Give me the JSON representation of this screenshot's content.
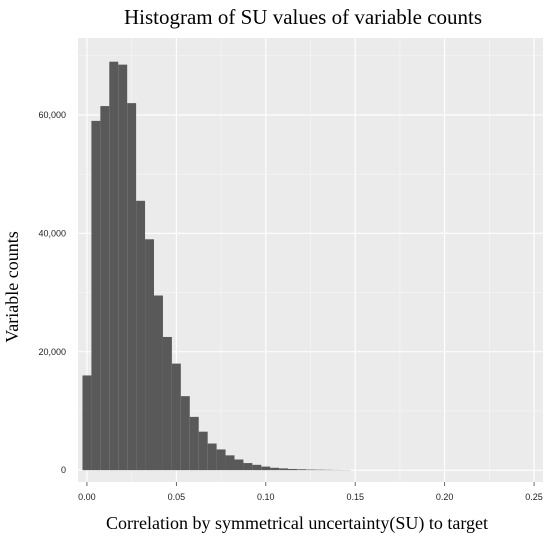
{
  "chart_data": {
    "type": "bar",
    "title": "Histogram of SU values of variable counts",
    "xlabel": "Correlation by symmetrical uncertainty(SU) to target",
    "ylabel": "Variable counts",
    "xlim": [
      -0.005,
      0.255
    ],
    "ylim": [
      -2000,
      73000
    ],
    "x_ticks": [
      0.0,
      0.05,
      0.1,
      0.15,
      0.2,
      0.25
    ],
    "x_tick_labels": [
      "0.00",
      "0.05",
      "0.10",
      "0.15",
      "0.20",
      "0.25"
    ],
    "y_ticks": [
      0,
      20000,
      40000,
      60000
    ],
    "y_tick_labels": [
      "0",
      "20,000",
      "40,000",
      "60,000"
    ],
    "grid": true,
    "bar_color": "#595959",
    "panel_color": "#ebebeb",
    "bin_width": 0.005,
    "bin_start": -0.0025,
    "values": [
      16000,
      59000,
      61500,
      69000,
      68500,
      62000,
      45500,
      39000,
      29500,
      22500,
      18000,
      12500,
      9000,
      6500,
      4500,
      3500,
      2500,
      1800,
      1200,
      900,
      600,
      400,
      300,
      200,
      150,
      100,
      80,
      60,
      40,
      30
    ]
  }
}
